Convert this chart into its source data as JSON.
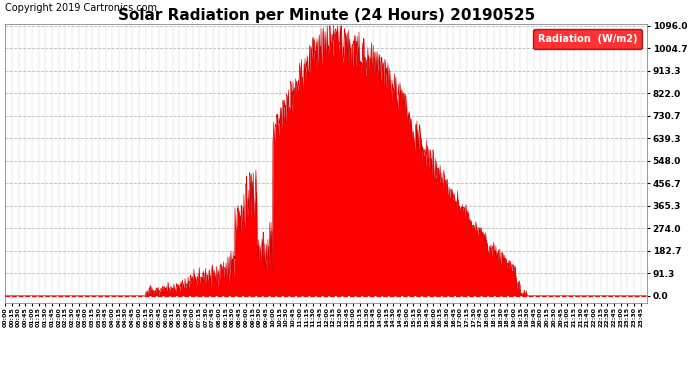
{
  "title": "Solar Radiation per Minute (24 Hours) 20190525",
  "copyright": "Copyright 2019 Cartronics.com",
  "legend_label": "Radiation  (W/m2)",
  "yticks": [
    0.0,
    91.3,
    182.7,
    274.0,
    365.3,
    456.7,
    548.0,
    639.3,
    730.7,
    822.0,
    913.3,
    1004.7,
    1096.0
  ],
  "ymax": 1096.0,
  "ymin": 0.0,
  "fill_color": "#ff0000",
  "line_color": "#cc0000",
  "background_color": "#ffffff",
  "title_fontsize": 11,
  "copyright_fontsize": 7,
  "sunrise_minute": 315,
  "sunset_minute": 1170,
  "solar_noon_minute": 745
}
